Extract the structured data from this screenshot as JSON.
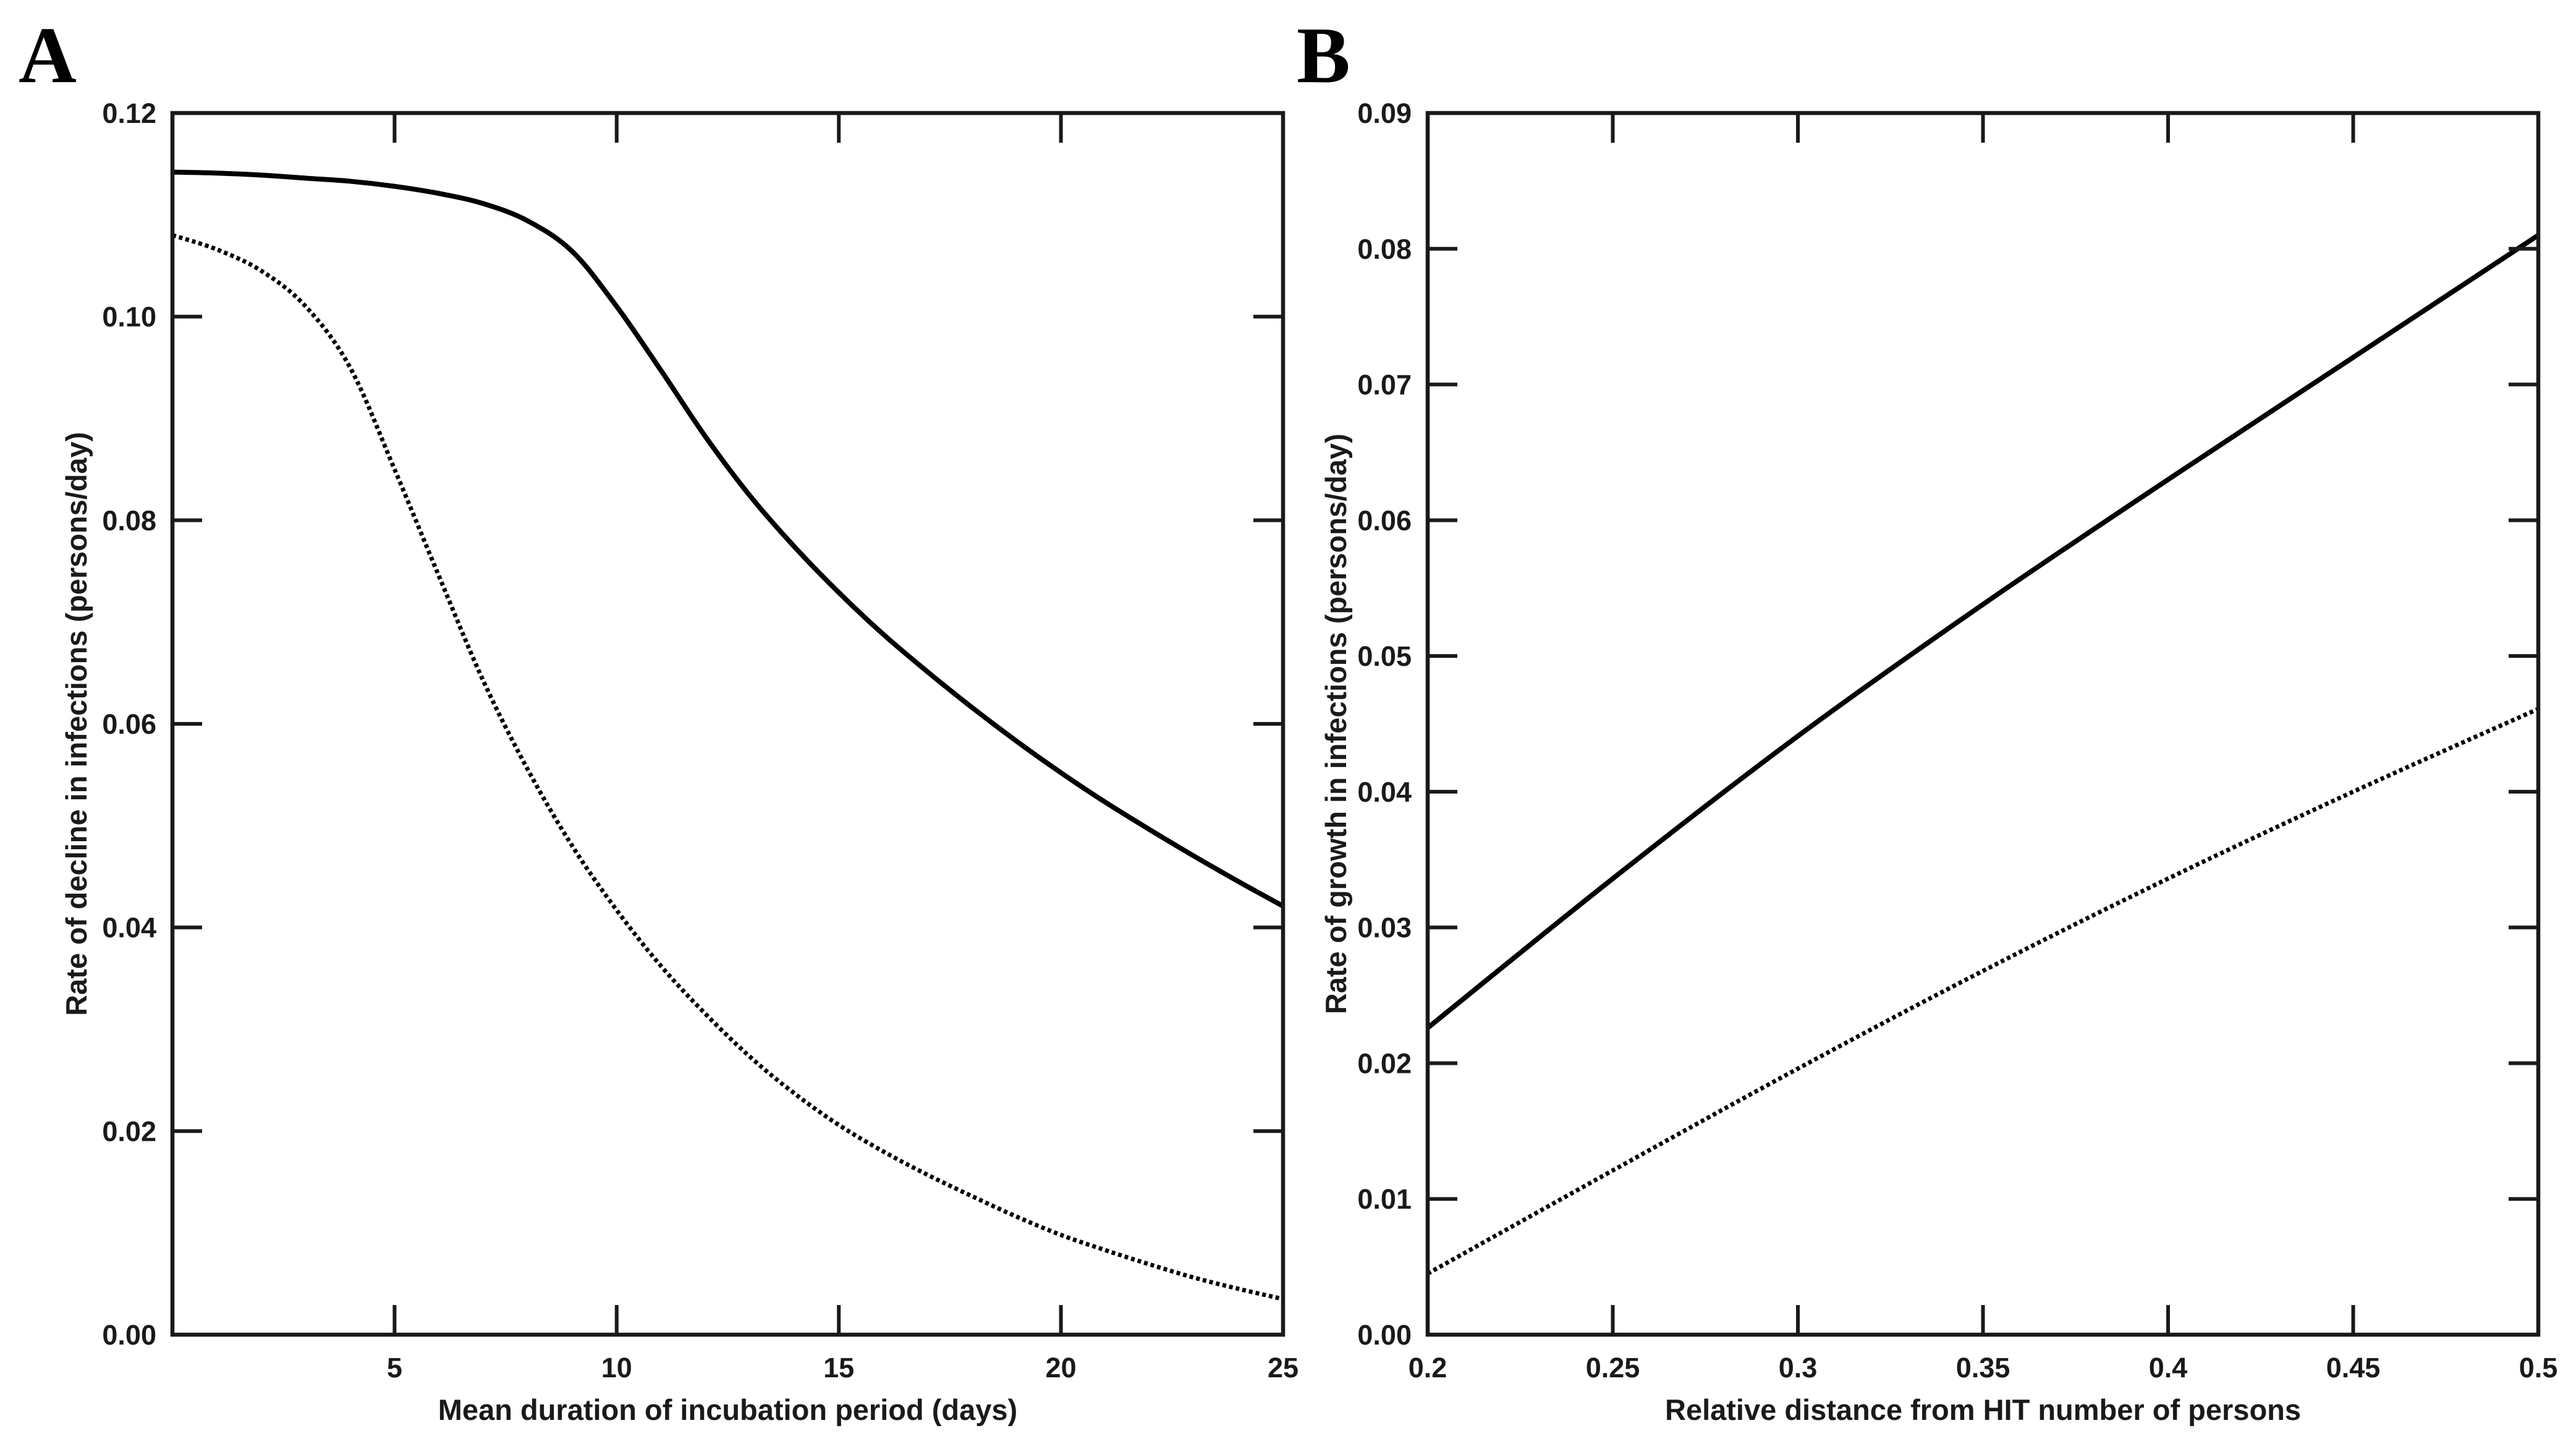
{
  "chart_data": [
    {
      "type": "line",
      "panel_label": "A",
      "xlabel": "Mean duration of incubation period (days)",
      "ylabel": "Rate of decline in infections (persons/day)",
      "xlim": [
        0,
        25
      ],
      "ylim": [
        0,
        0.12
      ],
      "xticks": {
        "values": [
          5,
          10,
          15,
          20,
          25
        ],
        "labels": [
          "5",
          "10",
          "15",
          "20",
          "25"
        ]
      },
      "yticks": {
        "values": [
          0,
          0.02,
          0.04,
          0.06,
          0.08,
          0.1,
          0.12
        ],
        "labels": [
          "0.00",
          "0.02",
          "0.04",
          "0.06",
          "0.08",
          "0.10",
          "0.12"
        ]
      },
      "grid": false,
      "legend": "none",
      "series": [
        {
          "line_style": "solid",
          "color": "#000000",
          "x": [
            0,
            1,
            2,
            3,
            4,
            5,
            6,
            7,
            8,
            9,
            10,
            11,
            12,
            13,
            14,
            15,
            16,
            17,
            18,
            19,
            20,
            21,
            22,
            23,
            24,
            25
          ],
          "y": [
            0.1142,
            0.1141,
            0.1139,
            0.1136,
            0.1133,
            0.1128,
            0.1121,
            0.1111,
            0.1094,
            0.1064,
            0.101,
            0.0947,
            0.0882,
            0.0824,
            0.0774,
            0.0729,
            0.0688,
            0.0651,
            0.0616,
            0.0583,
            0.0552,
            0.0523,
            0.0496,
            0.047,
            0.0445,
            0.0421
          ]
        },
        {
          "line_style": "dotted",
          "color": "#000000",
          "x": [
            0,
            1,
            2,
            3,
            4,
            5,
            6,
            7,
            8,
            9,
            10,
            11,
            12,
            13,
            14,
            15,
            16,
            17,
            18,
            19,
            20,
            21,
            22,
            23,
            24,
            25
          ],
          "y": [
            0.108,
            0.1066,
            0.1045,
            0.101,
            0.095,
            0.085,
            0.0745,
            0.0642,
            0.0555,
            0.048,
            0.0417,
            0.0362,
            0.0315,
            0.0273,
            0.0237,
            0.0206,
            0.018,
            0.0157,
            0.0136,
            0.0116,
            0.0098,
            0.0083,
            0.0069,
            0.0056,
            0.0045,
            0.0035
          ]
        }
      ]
    },
    {
      "type": "line",
      "panel_label": "B",
      "xlabel": "Relative distance from HIT number of persons",
      "ylabel": "Rate of growth in infections (persons/day)",
      "xlim": [
        0.2,
        0.5
      ],
      "ylim": [
        0,
        0.09
      ],
      "xticks": {
        "values": [
          0.2,
          0.25,
          0.3,
          0.35,
          0.4,
          0.45,
          0.5
        ],
        "labels": [
          "0.2",
          "0.25",
          "0.3",
          "0.35",
          "0.4",
          "0.45",
          "0.5"
        ]
      },
      "yticks": {
        "values": [
          0,
          0.01,
          0.02,
          0.03,
          0.04,
          0.05,
          0.06,
          0.07,
          0.08,
          0.09
        ],
        "labels": [
          "0.00",
          "0.01",
          "0.02",
          "0.03",
          "0.04",
          "0.05",
          "0.06",
          "0.07",
          "0.08",
          "0.09"
        ]
      },
      "grid": false,
      "legend": "none",
      "series": [
        {
          "line_style": "solid",
          "color": "#000000",
          "x": [
            0.2,
            0.25,
            0.3,
            0.35,
            0.4,
            0.45,
            0.5
          ],
          "y": [
            0.0226,
            0.0336,
            0.0441,
            0.0538,
            0.063,
            0.072,
            0.081
          ]
        },
        {
          "line_style": "dotted",
          "color": "#000000",
          "x": [
            0.2,
            0.25,
            0.3,
            0.35,
            0.4,
            0.45,
            0.5
          ],
          "y": [
            0.0045,
            0.0121,
            0.0196,
            0.0268,
            0.0336,
            0.04,
            0.0461
          ]
        }
      ]
    }
  ]
}
